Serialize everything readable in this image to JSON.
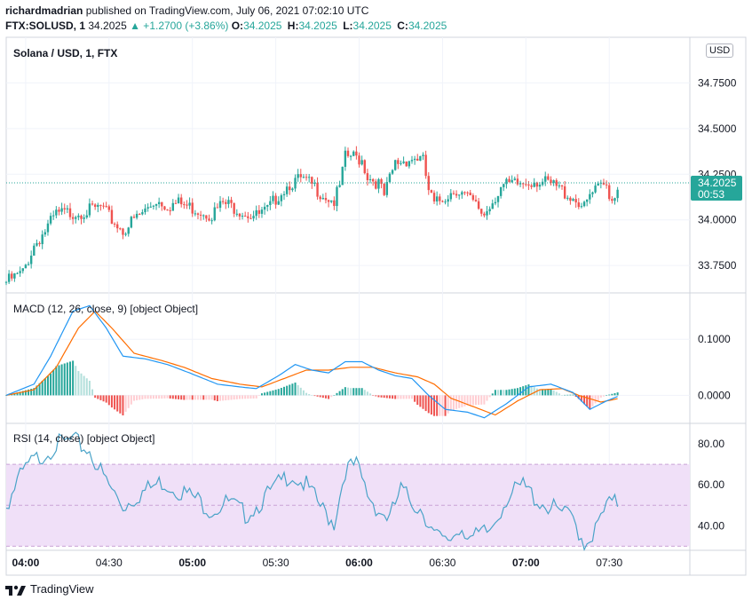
{
  "header": {
    "author": "richardmadrian",
    "published": "published on TradingView.com, July 06, 2021 07:02:10 UTC",
    "symbol": "FTX:SOLUSD, 1",
    "last": "34.2025",
    "change": "▲ +1.2700 (+3.86%)",
    "o_label": "O:",
    "o": "34.2025",
    "h_label": "H:",
    "h": "34.2025",
    "l_label": "L:",
    "l": "34.2025",
    "c_label": "C:",
    "c": "34.2025"
  },
  "pane_titles": {
    "price": "Solana / USD, 1, FTX",
    "macd": "MACD (12, 26, close, 9) [object Object]",
    "rsi": "RSI (14, close) [object Object]"
  },
  "currency_button": "USD",
  "price_tag": {
    "price": "34.2025",
    "countdown": "00:53"
  },
  "footer": {
    "brand": "TradingView"
  },
  "colors": {
    "up": "#26a69a",
    "down": "#ef5350",
    "macd": "#2196f3",
    "signal": "#ff6d00",
    "rsi": "#4aa3c8",
    "rsi_band": "#f0e0f8"
  },
  "chart_data": [
    {
      "type": "candlestick",
      "title": "Solana / USD, 1, FTX",
      "x_ticks": [
        "04:00",
        "04:30",
        "05:00",
        "05:30",
        "06:00",
        "06:30",
        "07:00",
        "07:30"
      ],
      "y_ticks": [
        "33.7500",
        "34.0000",
        "34.2500",
        "34.5000",
        "34.7500"
      ],
      "ylim": [
        33.6,
        35.0
      ],
      "last_price": 34.2025,
      "close_path": [
        [
          0,
          33.68
        ],
        [
          6,
          33.73
        ],
        [
          10,
          33.88
        ],
        [
          14,
          33.96
        ],
        [
          18,
          34.05
        ],
        [
          24,
          34.06
        ],
        [
          30,
          34.07
        ],
        [
          34,
          34.09
        ],
        [
          38,
          34.02
        ],
        [
          42,
          33.96
        ],
        [
          46,
          34.02
        ],
        [
          50,
          34.07
        ],
        [
          54,
          34.13
        ],
        [
          58,
          34.1
        ],
        [
          62,
          34.11
        ],
        [
          66,
          34.09
        ],
        [
          70,
          34.07
        ],
        [
          74,
          34.05
        ],
        [
          78,
          34.11
        ],
        [
          82,
          34.09
        ],
        [
          86,
          34.06
        ],
        [
          90,
          34.04
        ],
        [
          94,
          34.07
        ],
        [
          98,
          34.16
        ],
        [
          102,
          34.22
        ],
        [
          106,
          34.24
        ],
        [
          110,
          34.21
        ],
        [
          114,
          34.16
        ],
        [
          118,
          34.12
        ],
        [
          120,
          34.2
        ],
        [
          122,
          34.36
        ],
        [
          124,
          34.37
        ],
        [
          128,
          34.35
        ],
        [
          130,
          34.26
        ],
        [
          134,
          34.22
        ],
        [
          136,
          34.15
        ],
        [
          140,
          34.33
        ],
        [
          144,
          34.35
        ],
        [
          148,
          34.36
        ],
        [
          150,
          34.34
        ],
        [
          152,
          34.18
        ],
        [
          154,
          34.1
        ],
        [
          158,
          34.15
        ],
        [
          162,
          34.19
        ],
        [
          166,
          34.14
        ],
        [
          170,
          34.08
        ],
        [
          172,
          34.05
        ],
        [
          174,
          34.1
        ],
        [
          178,
          34.2
        ],
        [
          182,
          34.21
        ],
        [
          186,
          34.22
        ],
        [
          190,
          34.24
        ],
        [
          194,
          34.22
        ],
        [
          198,
          34.2
        ],
        [
          202,
          34.16
        ],
        [
          206,
          34.12
        ],
        [
          208,
          34.08
        ],
        [
          210,
          34.15
        ],
        [
          214,
          34.2
        ],
        [
          216,
          34.21
        ],
        [
          218,
          34.13
        ],
        [
          220,
          34.2
        ]
      ]
    },
    {
      "type": "macd",
      "title": "MACD (12, 26, close, 9) [object Object]",
      "y_ticks": [
        "0.0000",
        "0.1000"
      ],
      "ylim": [
        -0.05,
        0.17
      ],
      "macd_path": [
        [
          0,
          0.0
        ],
        [
          10,
          0.02
        ],
        [
          16,
          0.07
        ],
        [
          24,
          0.15
        ],
        [
          30,
          0.16
        ],
        [
          36,
          0.12
        ],
        [
          42,
          0.07
        ],
        [
          50,
          0.065
        ],
        [
          58,
          0.055
        ],
        [
          66,
          0.04
        ],
        [
          76,
          0.02
        ],
        [
          84,
          0.015
        ],
        [
          90,
          0.012
        ],
        [
          98,
          0.035
        ],
        [
          104,
          0.055
        ],
        [
          110,
          0.045
        ],
        [
          116,
          0.04
        ],
        [
          122,
          0.06
        ],
        [
          128,
          0.06
        ],
        [
          134,
          0.045
        ],
        [
          140,
          0.035
        ],
        [
          146,
          0.03
        ],
        [
          152,
          0.0
        ],
        [
          158,
          -0.025
        ],
        [
          166,
          -0.03
        ],
        [
          172,
          -0.04
        ],
        [
          180,
          -0.015
        ],
        [
          188,
          0.015
        ],
        [
          196,
          0.02
        ],
        [
          204,
          0.005
        ],
        [
          210,
          -0.025
        ],
        [
          216,
          -0.01
        ],
        [
          220,
          -0.002
        ]
      ],
      "signal_path": [
        [
          0,
          0.0
        ],
        [
          10,
          0.01
        ],
        [
          18,
          0.05
        ],
        [
          26,
          0.12
        ],
        [
          32,
          0.15
        ],
        [
          38,
          0.12
        ],
        [
          46,
          0.075
        ],
        [
          56,
          0.062
        ],
        [
          64,
          0.05
        ],
        [
          74,
          0.03
        ],
        [
          84,
          0.02
        ],
        [
          92,
          0.015
        ],
        [
          100,
          0.03
        ],
        [
          108,
          0.045
        ],
        [
          116,
          0.045
        ],
        [
          124,
          0.05
        ],
        [
          132,
          0.05
        ],
        [
          140,
          0.04
        ],
        [
          148,
          0.033
        ],
        [
          154,
          0.02
        ],
        [
          160,
          -0.005
        ],
        [
          168,
          -0.02
        ],
        [
          176,
          -0.035
        ],
        [
          184,
          -0.01
        ],
        [
          192,
          0.01
        ],
        [
          200,
          0.012
        ],
        [
          206,
          0.0
        ],
        [
          214,
          -0.012
        ],
        [
          220,
          -0.006
        ]
      ]
    },
    {
      "type": "line",
      "title": "RSI (14, close) [object Object]",
      "y_ticks": [
        "40.00",
        "60.00",
        "80.00"
      ],
      "ylim": [
        28,
        90
      ],
      "band": [
        30,
        70
      ],
      "rsi_path": [
        [
          0,
          52
        ],
        [
          4,
          64
        ],
        [
          8,
          72
        ],
        [
          14,
          78
        ],
        [
          18,
          82
        ],
        [
          24,
          84
        ],
        [
          30,
          79
        ],
        [
          36,
          64
        ],
        [
          42,
          52
        ],
        [
          48,
          58
        ],
        [
          56,
          64
        ],
        [
          62,
          60
        ],
        [
          68,
          56
        ],
        [
          74,
          50
        ],
        [
          80,
          54
        ],
        [
          86,
          48
        ],
        [
          90,
          52
        ],
        [
          96,
          60
        ],
        [
          102,
          68
        ],
        [
          108,
          62
        ],
        [
          114,
          50
        ],
        [
          118,
          44
        ],
        [
          122,
          70
        ],
        [
          126,
          72
        ],
        [
          130,
          58
        ],
        [
          134,
          50
        ],
        [
          138,
          46
        ],
        [
          142,
          60
        ],
        [
          146,
          54
        ],
        [
          150,
          50
        ],
        [
          154,
          38
        ],
        [
          158,
          34
        ],
        [
          164,
          42
        ],
        [
          168,
          36
        ],
        [
          174,
          40
        ],
        [
          180,
          56
        ],
        [
          186,
          62
        ],
        [
          192,
          54
        ],
        [
          198,
          50
        ],
        [
          204,
          46
        ],
        [
          208,
          34
        ],
        [
          212,
          40
        ],
        [
          216,
          52
        ],
        [
          220,
          54
        ]
      ]
    }
  ]
}
